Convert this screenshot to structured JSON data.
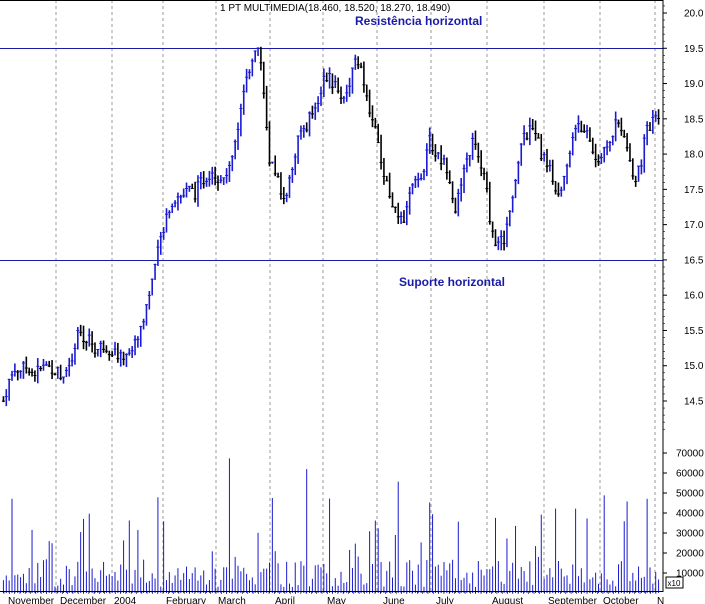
{
  "chart_data": {
    "type": "line",
    "title": "1 PT MULTIMEDIA(18.460, 18.520, 18.270, 18.490)",
    "price_axis": {
      "ylim": [
        14.0,
        20.2
      ],
      "ticks": [
        "20.0",
        "19.5",
        "19.0",
        "18.5",
        "18.0",
        "17.5",
        "17.0",
        "16.5",
        "16.0",
        "15.5",
        "15.0",
        "14.5"
      ]
    },
    "volume_axis": {
      "ylim": [
        0,
        75000
      ],
      "ticks": [
        "70000",
        "60000",
        "50000",
        "40000",
        "30000",
        "20000",
        "10000"
      ],
      "multiplier_label": "x10"
    },
    "x_axis": {
      "labels": [
        "November",
        "December",
        "2004",
        "February",
        "March",
        "April",
        "May",
        "June",
        "July",
        "August",
        "September",
        "October",
        "N"
      ]
    },
    "annotations": [
      {
        "text": "Resistência horizontal",
        "level": 19.5
      },
      {
        "text": "Suporte horizontal",
        "level": 16.5
      }
    ],
    "grid": true,
    "series": [
      {
        "values": [
          14.5,
          14.8,
          14.95,
          14.95,
          15.0,
          14.9,
          14.95,
          15.0,
          14.95,
          14.9,
          14.9,
          15.1,
          15.5,
          15.3,
          15.4,
          15.2,
          15.3,
          15.25,
          15.2,
          15.1,
          15.2,
          15.25,
          15.5,
          15.8,
          16.2,
          16.6,
          17.0,
          17.3,
          17.4,
          17.4,
          17.5,
          17.45,
          17.6,
          17.7,
          17.8,
          17.6,
          17.7,
          18.0,
          18.4,
          18.9,
          19.3,
          19.6,
          19.1,
          17.8,
          17.8,
          17.4,
          17.5,
          17.9,
          18.3,
          18.4,
          18.6,
          18.8,
          19.1,
          19.05,
          18.9,
          18.8,
          19.0,
          19.4,
          19.2,
          18.7,
          18.5,
          17.9,
          17.6,
          17.3,
          17.0,
          17.1,
          17.5,
          17.6,
          17.8,
          18.2,
          18.0,
          17.9,
          17.8,
          17.2,
          17.5,
          17.9,
          18.2,
          17.9,
          17.6,
          16.9,
          16.7,
          16.8,
          17.2,
          17.8,
          18.2,
          18.3,
          18.4,
          18.0,
          17.9,
          17.6,
          17.5,
          17.8,
          18.2,
          18.5,
          18.3,
          18.2,
          17.9,
          18.0,
          18.1,
          18.45,
          18.4,
          18.0,
          17.6,
          17.8,
          18.3,
          18.45,
          18.5
        ]
      }
    ]
  }
}
